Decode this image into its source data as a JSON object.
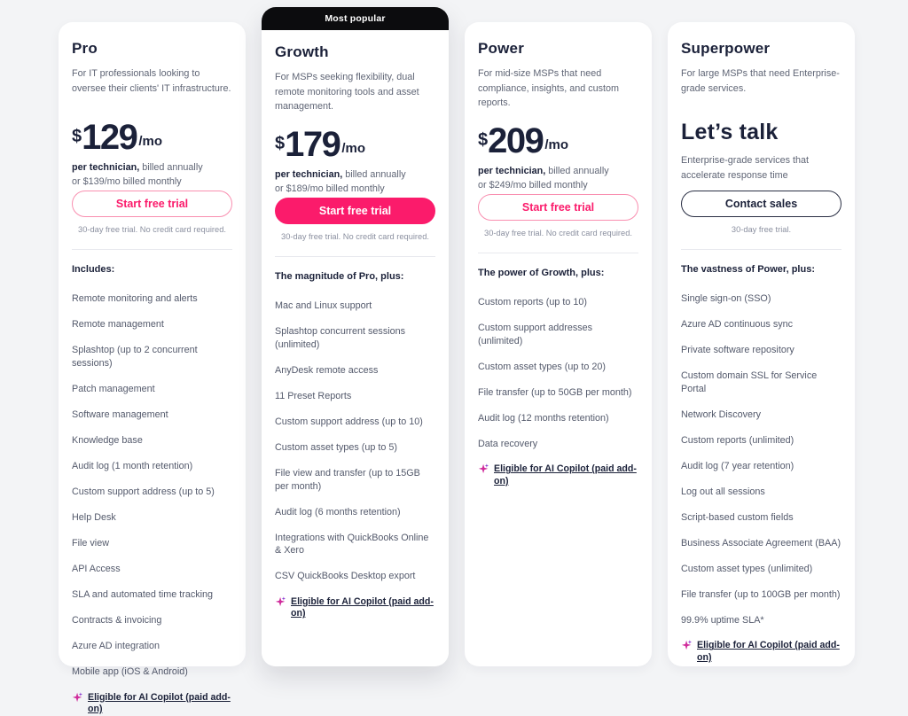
{
  "colors": {
    "accent": "#fb1b6b",
    "accent_border": "#f98fb0",
    "dark_text": "#1b2139",
    "gray_text": "#5f6575",
    "badge_bg": "#0c0c0e",
    "page_bg": "#f3f4f6"
  },
  "badge": {
    "label": "Most popular"
  },
  "plans": [
    {
      "name": "Pro",
      "description": "For IT professionals looking to oversee their clients' IT infrastructure.",
      "currency": "$",
      "price": "129",
      "price_suffix": "/mo",
      "billing_bold": "per technician,",
      "billing_rest": " billed annually",
      "billing_line2": "or $139/mo billed monthly",
      "cta_label": "Start free trial",
      "cta_caption": "30-day free trial. No credit card required.",
      "features_heading": "Includes:",
      "features": [
        "Remote monitoring and alerts",
        "Remote management",
        "Splashtop (up to 2 concurrent sessions)",
        "Patch management",
        "Software management",
        "Knowledge base",
        "Audit log (1 month retention)",
        "Custom support address (up to 5)",
        "Help Desk",
        "File view",
        "API Access",
        "SLA and automated time tracking",
        "Contracts & invoicing",
        "Azure AD integration",
        "Mobile app (iOS & Android)"
      ],
      "ai_feature": "Eligible for AI Copilot (paid add-on)"
    },
    {
      "name": "Growth",
      "description": "For MSPs seeking flexibility, dual remote monitoring tools and asset management.",
      "currency": "$",
      "price": "179",
      "price_suffix": "/mo",
      "billing_bold": "per technician,",
      "billing_rest": " billed annually",
      "billing_line2": "or $189/mo billed monthly",
      "cta_label": "Start free trial",
      "cta_caption": "30-day free trial. No credit card required.",
      "features_heading": "The magnitude of Pro, plus:",
      "features": [
        "Mac and Linux support",
        "Splashtop concurrent sessions (unlimited)",
        "AnyDesk remote access",
        "11 Preset Reports",
        "Custom support address (up to 10)",
        "Custom asset types (up to 5)",
        "File view and transfer (up to 15GB per month)",
        "Audit log (6 months retention)",
        "Integrations with QuickBooks Online & Xero",
        "CSV QuickBooks Desktop export"
      ],
      "ai_feature": "Eligible for AI Copilot (paid add-on)"
    },
    {
      "name": "Power",
      "description": "For mid-size MSPs that need compliance, insights, and custom reports.",
      "currency": "$",
      "price": "209",
      "price_suffix": "/mo",
      "billing_bold": "per technician,",
      "billing_rest": " billed annually",
      "billing_line2": "or $249/mo billed monthly",
      "cta_label": "Start free trial",
      "cta_caption": "30-day free trial. No credit card required.",
      "features_heading": "The power of Growth, plus:",
      "features": [
        "Custom reports (up to 10)",
        "Custom support addresses (unlimited)",
        "Custom asset types (up to 20)",
        "File transfer (up to 50GB per month)",
        "Audit log (12 months retention)",
        "Data recovery"
      ],
      "ai_feature": "Eligible for AI Copilot (paid add-on)"
    },
    {
      "name": "Superpower",
      "description": "For large MSPs that need Enterprise-grade services.",
      "lets_talk": "Let’s talk",
      "lets_talk_sub": "Enterprise-grade services that accelerate response time",
      "cta_label": "Contact sales",
      "cta_caption": "30-day free trial.",
      "features_heading": "The vastness of Power, plus:",
      "features": [
        "Single sign-on (SSO)",
        "Azure AD continuous sync",
        "Private software repository",
        "Custom domain SSL for Service Portal",
        "Network Discovery",
        "Custom reports (unlimited)",
        "Audit log (7 year retention)",
        "Log out all sessions",
        "Script-based custom fields",
        "Business Associate Agreement (BAA)",
        "Custom asset types (unlimited)",
        "File transfer (up to 100GB per month)",
        "99.9% uptime SLA*"
      ],
      "ai_feature": "Eligible for AI Copilot (paid add-on)"
    }
  ]
}
